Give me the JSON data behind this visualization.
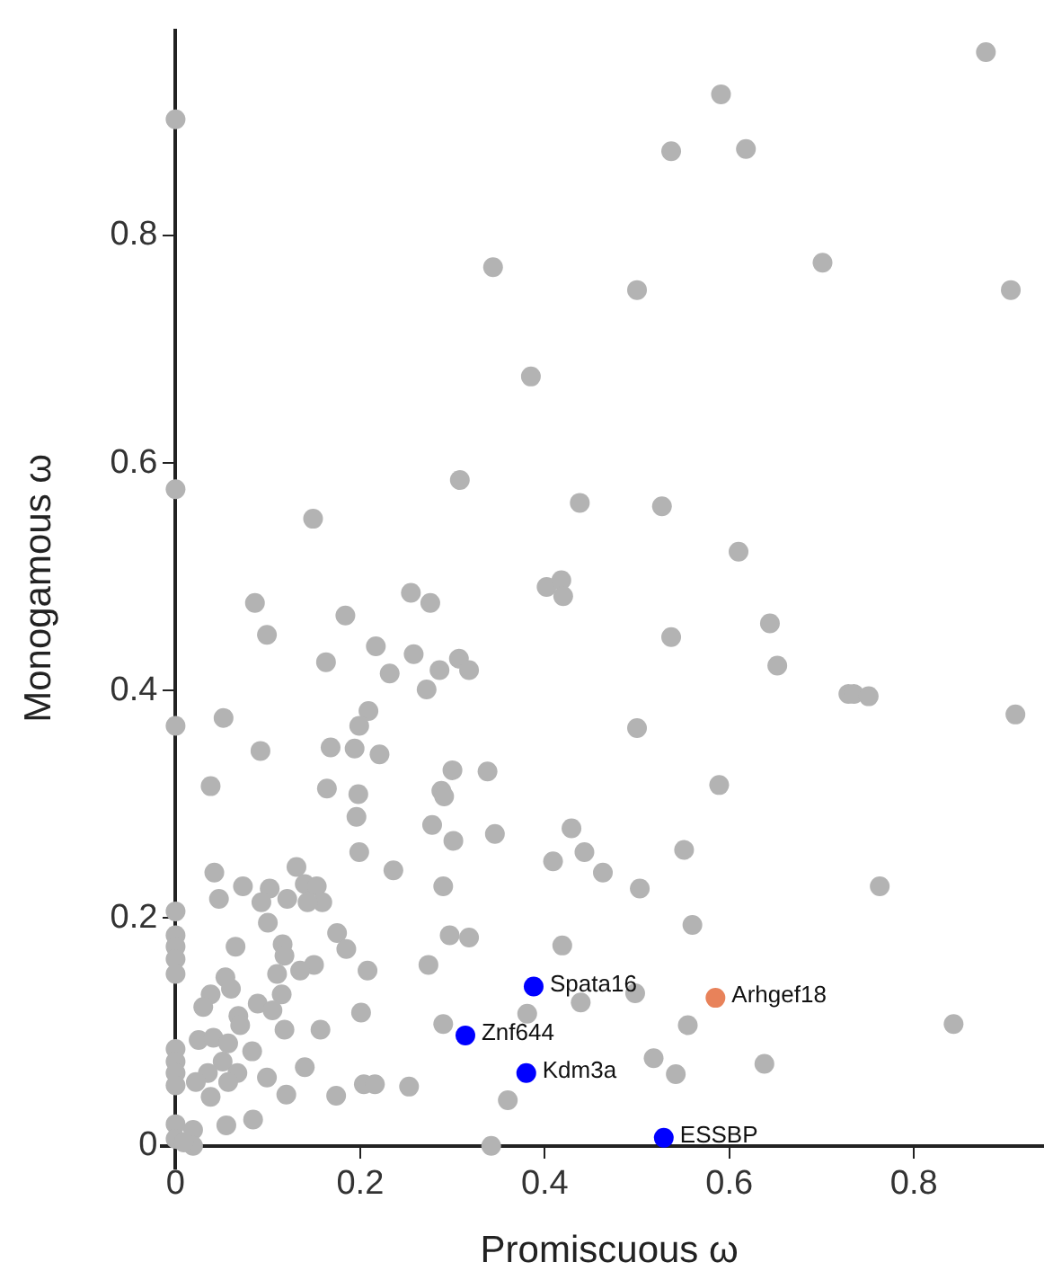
{
  "chart_data": {
    "type": "scatter",
    "xlabel": "Promiscuous ω",
    "ylabel": "Monogamous ω",
    "xlim": [
      -0.015,
      0.94
    ],
    "ylim": [
      -0.02,
      0.98
    ],
    "xticks": [
      0,
      0.2,
      0.4,
      0.6,
      0.8
    ],
    "yticks": [
      0,
      0.2,
      0.4,
      0.6,
      0.8
    ],
    "grid": false,
    "legend": false,
    "marker": "circle",
    "series": [
      {
        "color": "#b3b3b3",
        "x": [
          0,
          0.344,
          0.385,
          0.308,
          0,
          0.149,
          0.255,
          0.878,
          0.591,
          0.537,
          0.618,
          0.701,
          0.5,
          0.905,
          0.438,
          0.527,
          0.61,
          0.086,
          0.099,
          0.276,
          0.184,
          0.163,
          0.217,
          0.232,
          0.258,
          0.272,
          0.286,
          0.307,
          0.209,
          0.199,
          0,
          0.052,
          0.092,
          0.168,
          0.194,
          0.221,
          0.038,
          0.164,
          0.198,
          0.196,
          0.3,
          0.288,
          0.291,
          0.278,
          0.301,
          0.199,
          0.236,
          0.131,
          0.042,
          0.073,
          0.047,
          0.102,
          0.093,
          0.121,
          0.14,
          0.153,
          0.159,
          0.143,
          0.29,
          0,
          0.1,
          0.175,
          0.185,
          0.297,
          0,
          0,
          0,
          0,
          0.065,
          0.116,
          0.118,
          0.15,
          0.135,
          0.208,
          0.274,
          0.11,
          0.054,
          0.038,
          0.06,
          0.03,
          0.115,
          0.089,
          0.105,
          0.068,
          0.07,
          0.201,
          0.29,
          0.118,
          0.157,
          0.025,
          0.041,
          0.057,
          0.083,
          0,
          0,
          0,
          0,
          0.051,
          0.067,
          0.035,
          0.057,
          0.022,
          0.099,
          0.14,
          0.038,
          0.12,
          0.174,
          0.204,
          0.216,
          0.253,
          0.055,
          0.084,
          0,
          0,
          0.019,
          0.019,
          0.009,
          0.402,
          0.418,
          0.42,
          0.537,
          0.318,
          0.5,
          0.589,
          0.338,
          0.346,
          0.429,
          0.409,
          0.443,
          0.463,
          0.503,
          0.551,
          0.56,
          0.318,
          0.419,
          0.439,
          0.498,
          0.381,
          0.555,
          0.518,
          0.542,
          0.36,
          0.342,
          0.644,
          0.652,
          0.729,
          0.735,
          0.751,
          0.91,
          0.763,
          0.843,
          0.638
        ],
        "values": [
          0.902,
          0.772,
          0.676,
          0.585,
          0.577,
          0.551,
          0.486,
          0.961,
          0.924,
          0.874,
          0.876,
          0.776,
          0.752,
          0.752,
          0.565,
          0.562,
          0.522,
          0.477,
          0.449,
          0.477,
          0.466,
          0.425,
          0.439,
          0.415,
          0.432,
          0.401,
          0.418,
          0.428,
          0.382,
          0.369,
          0.369,
          0.376,
          0.347,
          0.35,
          0.349,
          0.344,
          0.316,
          0.314,
          0.309,
          0.289,
          0.33,
          0.312,
          0.307,
          0.282,
          0.268,
          0.258,
          0.242,
          0.245,
          0.24,
          0.228,
          0.217,
          0.226,
          0.214,
          0.217,
          0.23,
          0.228,
          0.214,
          0.214,
          0.228,
          0.206,
          0.196,
          0.187,
          0.173,
          0.185,
          0.185,
          0.175,
          0.164,
          0.151,
          0.175,
          0.177,
          0.167,
          0.159,
          0.154,
          0.154,
          0.159,
          0.151,
          0.148,
          0.133,
          0.138,
          0.122,
          0.133,
          0.125,
          0.119,
          0.114,
          0.106,
          0.117,
          0.107,
          0.102,
          0.102,
          0.093,
          0.095,
          0.09,
          0.083,
          0.085,
          0.074,
          0.064,
          0.053,
          0.074,
          0.064,
          0.064,
          0.056,
          0.056,
          0.06,
          0.069,
          0.043,
          0.045,
          0.044,
          0.054,
          0.054,
          0.052,
          0.018,
          0.023,
          0.019,
          0.006,
          0.014,
          0,
          0.003,
          0.491,
          0.497,
          0.483,
          0.447,
          0.418,
          0.367,
          0.317,
          0.329,
          0.274,
          0.279,
          0.25,
          0.258,
          0.24,
          0.226,
          0.26,
          0.194,
          0.183,
          0.176,
          0.126,
          0.134,
          0.116,
          0.106,
          0.077,
          0.063,
          0.04,
          0,
          0.459,
          0.422,
          0.397,
          0.397,
          0.395,
          0.379,
          0.228,
          0.107,
          0.072
        ]
      },
      {
        "color": "#0000ff",
        "x": [
          0.388,
          0.314,
          0.38,
          0.529
        ],
        "values": [
          0.14,
          0.097,
          0.064,
          0.007
        ]
      },
      {
        "color": "#e8825a",
        "x": [
          0.585
        ],
        "values": [
          0.13
        ]
      }
    ],
    "annotations": [
      {
        "text": "Spata16",
        "x": 0.388,
        "y": 0.14
      },
      {
        "text": "Znf644",
        "x": 0.314,
        "y": 0.097
      },
      {
        "text": "Kdm3a",
        "x": 0.38,
        "y": 0.064
      },
      {
        "text": "ESSBP",
        "x": 0.529,
        "y": 0.007
      },
      {
        "text": "Arhgef18",
        "x": 0.585,
        "y": 0.13
      }
    ]
  }
}
